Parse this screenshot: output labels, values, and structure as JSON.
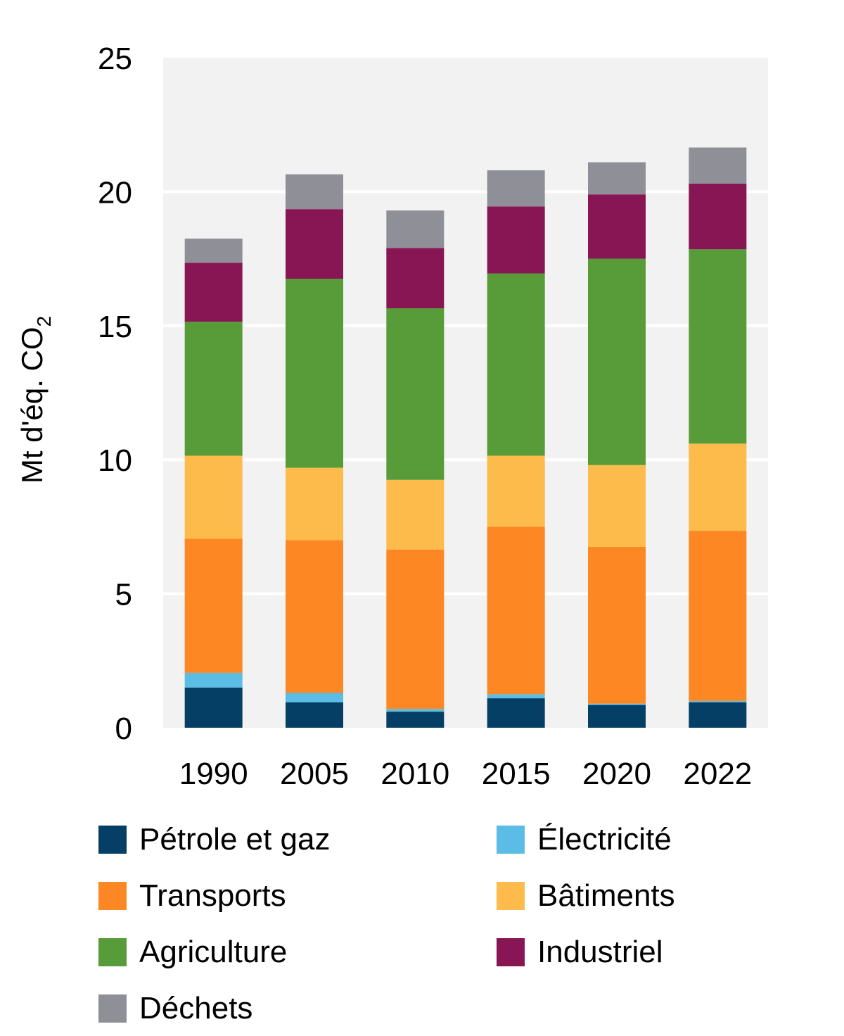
{
  "chart_data": {
    "type": "bar",
    "stacked": true,
    "categories": [
      "1990",
      "2005",
      "2010",
      "2015",
      "2020",
      "2022"
    ],
    "ylabel": "Mt d'éq. CO",
    "ylabel_subscript": "2",
    "ylim": [
      0,
      25
    ],
    "yticks": [
      "0",
      "5",
      "10",
      "15",
      "20",
      "25"
    ],
    "grid": true,
    "legend_position": "bottom",
    "series": [
      {
        "name": "Pétrole et gaz",
        "color": "#063f66",
        "values": [
          1.5,
          0.95,
          0.6,
          1.1,
          0.85,
          0.95
        ]
      },
      {
        "name": "Électricité",
        "color": "#5bbde6",
        "values": [
          0.55,
          0.35,
          0.1,
          0.15,
          0.05,
          0.05
        ]
      },
      {
        "name": "Transports",
        "color": "#fd8722",
        "values": [
          5.0,
          5.7,
          5.95,
          6.25,
          5.85,
          6.35
        ]
      },
      {
        "name": "Bâtiments",
        "color": "#fdbb4c",
        "values": [
          3.1,
          2.7,
          2.6,
          2.65,
          3.05,
          3.25
        ]
      },
      {
        "name": "Agriculture",
        "color": "#589b39",
        "values": [
          5.0,
          7.05,
          6.4,
          6.8,
          7.7,
          7.25
        ]
      },
      {
        "name": "Industriel",
        "color": "#881654",
        "values": [
          2.2,
          2.6,
          2.25,
          2.5,
          2.4,
          2.45
        ]
      },
      {
        "name": "Déchets",
        "color": "#8f8f98",
        "values": [
          0.9,
          1.3,
          1.4,
          1.35,
          1.2,
          1.35
        ]
      }
    ]
  }
}
